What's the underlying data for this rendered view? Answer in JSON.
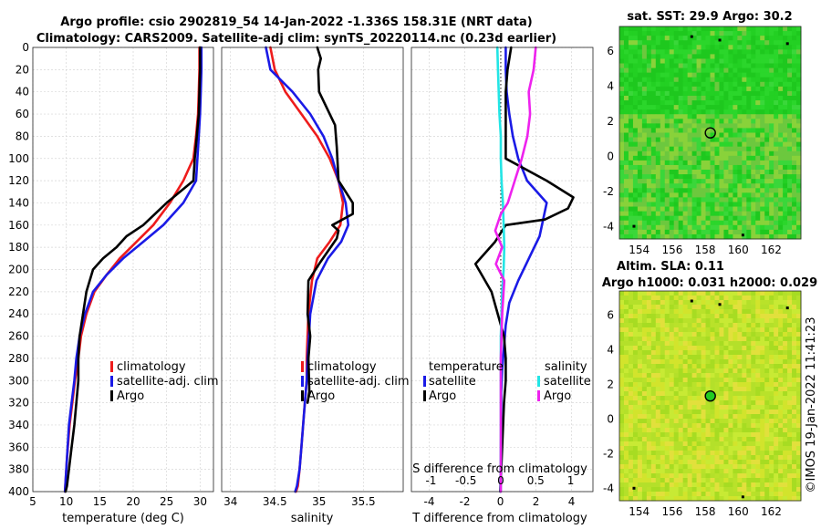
{
  "title": {
    "line1": "Argo profile: csio 2902819_54 14-Jan-2022 -1.336S 158.31E (NRT data)",
    "line2": "Climatology: CARS2009. Satellite-adj clim: synTS_20220114.nc (0.23d earlier)"
  },
  "watermark": "©IMOS 19-Jan-2022 11:41:23",
  "colors": {
    "climatology": "#ee1c1c",
    "satellite": "#1a1ae6",
    "argo": "#000000",
    "s_satellite": "#22e5e5",
    "s_argo": "#ee22ee"
  },
  "chart_data": [
    {
      "id": "temperature",
      "type": "line",
      "xlabel": "temperature (deg C)",
      "ylabel": "",
      "xlim": [
        5,
        32
      ],
      "ylim": [
        0,
        400
      ],
      "y_inverted": true,
      "xticks": [
        5,
        10,
        15,
        20,
        25,
        30
      ],
      "yticks": [
        0,
        20,
        40,
        60,
        80,
        100,
        120,
        140,
        160,
        180,
        200,
        220,
        240,
        260,
        280,
        300,
        320,
        340,
        360,
        380,
        400
      ],
      "legend": [
        "climatology",
        "satellite-adj. clim",
        "Argo"
      ],
      "series": [
        {
          "name": "climatology",
          "color_key": "climatology",
          "x": [
            29.9,
            29.9,
            29.8,
            29.7,
            29.4,
            29.0,
            27.5,
            25.5,
            23.0,
            20.5,
            18.0,
            16.0,
            14.2,
            13.0,
            12.2,
            11.8,
            11.3,
            10.9,
            10.5,
            10.1,
            9.8
          ],
          "y": [
            0,
            20,
            40,
            60,
            80,
            100,
            120,
            140,
            160,
            175,
            190,
            205,
            220,
            240,
            260,
            280,
            300,
            320,
            340,
            370,
            400
          ]
        },
        {
          "name": "satellite-adj. clim",
          "color_key": "satellite",
          "x": [
            30.2,
            30.2,
            30.1,
            30.0,
            29.8,
            29.6,
            29.4,
            27.5,
            24.5,
            21.5,
            18.5,
            16.0,
            14.0,
            12.8,
            12.0,
            11.5,
            11.2,
            10.8,
            10.4,
            10.1,
            9.8
          ],
          "y": [
            0,
            20,
            40,
            60,
            80,
            100,
            120,
            140,
            160,
            175,
            190,
            205,
            220,
            240,
            260,
            280,
            300,
            320,
            340,
            370,
            400
          ]
        },
        {
          "name": "Argo",
          "color_key": "argo",
          "x": [
            30.0,
            30.0,
            29.9,
            29.8,
            29.5,
            29.2,
            29.0,
            25.0,
            21.5,
            19.0,
            17.5,
            15.5,
            14.0,
            13.0,
            12.0,
            11.8,
            11.8,
            11.5,
            11.2,
            10.8,
            10.4,
            10.1,
            9.9
          ],
          "y": [
            0,
            20,
            40,
            60,
            80,
            100,
            120,
            140,
            160,
            170,
            180,
            190,
            200,
            220,
            260,
            280,
            300,
            320,
            340,
            360,
            380,
            395,
            400
          ]
        }
      ]
    },
    {
      "id": "salinity",
      "type": "line",
      "xlabel": "salinity",
      "ylabel": "",
      "xlim": [
        33.9,
        35.95
      ],
      "ylim": [
        0,
        400
      ],
      "y_inverted": true,
      "xticks": [
        34,
        34.5,
        35,
        35.5
      ],
      "xticklabels": [
        "34",
        "34.5",
        "35",
        "35.5"
      ],
      "legend": [
        "climatology",
        "satellite-adj. clim",
        "Argo"
      ],
      "series": [
        {
          "name": "climatology",
          "color_key": "climatology",
          "x": [
            34.45,
            34.5,
            34.62,
            34.8,
            34.98,
            35.12,
            35.22,
            35.27,
            35.24,
            35.12,
            34.98,
            34.92,
            34.88,
            34.86,
            34.86,
            34.84,
            34.82,
            34.8,
            34.78,
            34.76,
            34.74
          ],
          "y": [
            0,
            20,
            40,
            60,
            80,
            100,
            120,
            140,
            160,
            175,
            190,
            210,
            240,
            280,
            300,
            320,
            340,
            360,
            380,
            395,
            400
          ]
        },
        {
          "name": "satellite-adj. clim",
          "color_key": "satellite",
          "x": [
            34.4,
            34.45,
            34.7,
            34.9,
            35.05,
            35.15,
            35.22,
            35.3,
            35.33,
            35.25,
            35.1,
            34.97,
            34.9,
            34.87,
            34.86,
            34.84,
            34.82,
            34.8,
            34.78,
            34.75,
            34.73
          ],
          "y": [
            0,
            20,
            40,
            60,
            80,
            100,
            120,
            140,
            160,
            175,
            190,
            210,
            240,
            280,
            300,
            320,
            340,
            360,
            380,
            395,
            400
          ]
        },
        {
          "name": "Argo",
          "color_key": "argo",
          "x": [
            34.98,
            35.02,
            34.99,
            35.0,
            35.18,
            35.2,
            35.22,
            35.38,
            35.38,
            35.15,
            35.22,
            35.2,
            35.0,
            34.88,
            34.87,
            34.9,
            34.88,
            34.89,
            34.87
          ],
          "y": [
            0,
            10,
            20,
            40,
            70,
            90,
            120,
            140,
            150,
            160,
            165,
            172,
            195,
            210,
            240,
            260,
            280,
            310,
            320
          ]
        }
      ]
    },
    {
      "id": "difference",
      "type": "line",
      "xlabel": "T difference from climatology",
      "xlabel_top": "S difference from climatology",
      "xlim": [
        -5,
        5.2
      ],
      "ylim": [
        0,
        400
      ],
      "y_inverted": true,
      "xticks": [
        -4,
        -2,
        0,
        2,
        4
      ],
      "xticks_top": [
        -1,
        -0.5,
        0,
        0.5,
        1
      ],
      "xticklabels_top": [
        "-1",
        "-0.5",
        "0",
        "0.5",
        "1"
      ],
      "legend_left_title": "temperature",
      "legend_right_title": "salinity",
      "legend_left": [
        "satellite",
        "Argo"
      ],
      "legend_right": [
        "satellite",
        "Argo"
      ],
      "series": [
        {
          "name": "T satellite",
          "color_key": "satellite",
          "x": [
            0.3,
            0.3,
            0.35,
            0.5,
            0.7,
            1.0,
            1.5,
            2.6,
            2.2,
            1.6,
            1.0,
            0.5,
            0.3,
            0.2,
            0.1,
            0.05,
            0.05,
            0.03,
            0.02,
            0.0
          ],
          "y": [
            0,
            20,
            40,
            60,
            80,
            100,
            120,
            140,
            170,
            190,
            210,
            230,
            250,
            270,
            290,
            310,
            330,
            360,
            380,
            400
          ]
        },
        {
          "name": "T Argo",
          "color_key": "argo",
          "x": [
            0.6,
            0.4,
            0.3,
            0.3,
            0.3,
            0.3,
            2.6,
            4.1,
            3.8,
            2.5,
            0.3,
            -0.3,
            -1.4,
            -0.5,
            0.2,
            0.3,
            0.3,
            0.2,
            0.1,
            0.0
          ],
          "y": [
            0,
            20,
            40,
            60,
            80,
            100,
            120,
            135,
            145,
            155,
            160,
            175,
            195,
            220,
            260,
            280,
            300,
            320,
            360,
            400
          ]
        },
        {
          "name": "S satellite",
          "color_key": "s_satellite",
          "x": [
            -0.05,
            -0.04,
            -0.03,
            -0.02,
            0.0,
            0.0,
            0.01,
            0.03,
            0.04,
            0.05,
            0.04,
            0.02,
            0.01,
            0.0,
            0.0,
            0.0,
            0.0
          ],
          "y": [
            0,
            20,
            40,
            60,
            80,
            100,
            120,
            140,
            160,
            180,
            200,
            220,
            240,
            260,
            300,
            350,
            400
          ]
        },
        {
          "name": "S Argo",
          "color_key": "s_argo",
          "x": [
            0.5,
            0.47,
            0.4,
            0.42,
            0.38,
            0.3,
            0.2,
            0.1,
            0.0,
            -0.08,
            0.02,
            -0.07,
            0.05,
            0.02,
            0.0,
            0.0,
            0.0
          ],
          "y": [
            0,
            20,
            40,
            60,
            80,
            100,
            120,
            140,
            150,
            165,
            180,
            195,
            210,
            240,
            280,
            320,
            400
          ]
        }
      ]
    },
    {
      "id": "sst_map",
      "type": "heatmap",
      "title": "sat. SST: 29.9  Argo: 30.2",
      "xticks": [
        154,
        156,
        158,
        160,
        162
      ],
      "yticks": [
        6,
        4,
        2,
        0,
        -2,
        -4
      ],
      "xlim": [
        152.8,
        163.8
      ],
      "ylim": [
        -4.7,
        7.4
      ],
      "marker": {
        "lon": 158.31,
        "lat": 1.34
      },
      "colors": [
        "#1ec81e",
        "#23d023",
        "#2bd62b",
        "#3ad73a",
        "#6cc83e",
        "#89d23a"
      ]
    },
    {
      "id": "sla_map",
      "type": "heatmap",
      "title_line1": "Altim. SLA: 0.11",
      "title_line2": "Argo h1000: 0.031  h2000: 0.029",
      "xticks": [
        154,
        156,
        158,
        160,
        162
      ],
      "yticks": [
        6,
        4,
        2,
        0,
        -2,
        -4
      ],
      "xlim": [
        152.8,
        163.8
      ],
      "ylim": [
        -4.7,
        7.4
      ],
      "marker": {
        "lon": 158.31,
        "lat": 1.34
      },
      "colors": [
        "#c8ea34",
        "#b9e22a",
        "#a7dc22",
        "#d2e42c",
        "#e2e03c",
        "#b4e02a"
      ]
    }
  ]
}
